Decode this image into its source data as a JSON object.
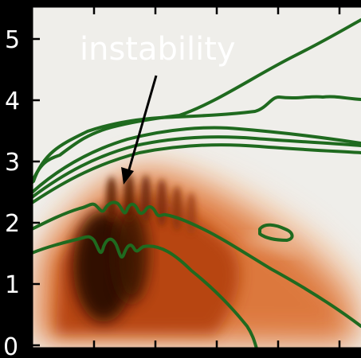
{
  "figure": {
    "annotation": "instability",
    "y_tick_labels": [
      "0",
      "1",
      "2",
      "3",
      "4",
      "5"
    ],
    "colors": {
      "background": "#000000",
      "plot_background": "#efeeea",
      "contour": "#1f6a1f",
      "heat_dark": "#1a0800",
      "heat_mid": "#b3400e",
      "heat_light": "#f0a777"
    }
  }
}
